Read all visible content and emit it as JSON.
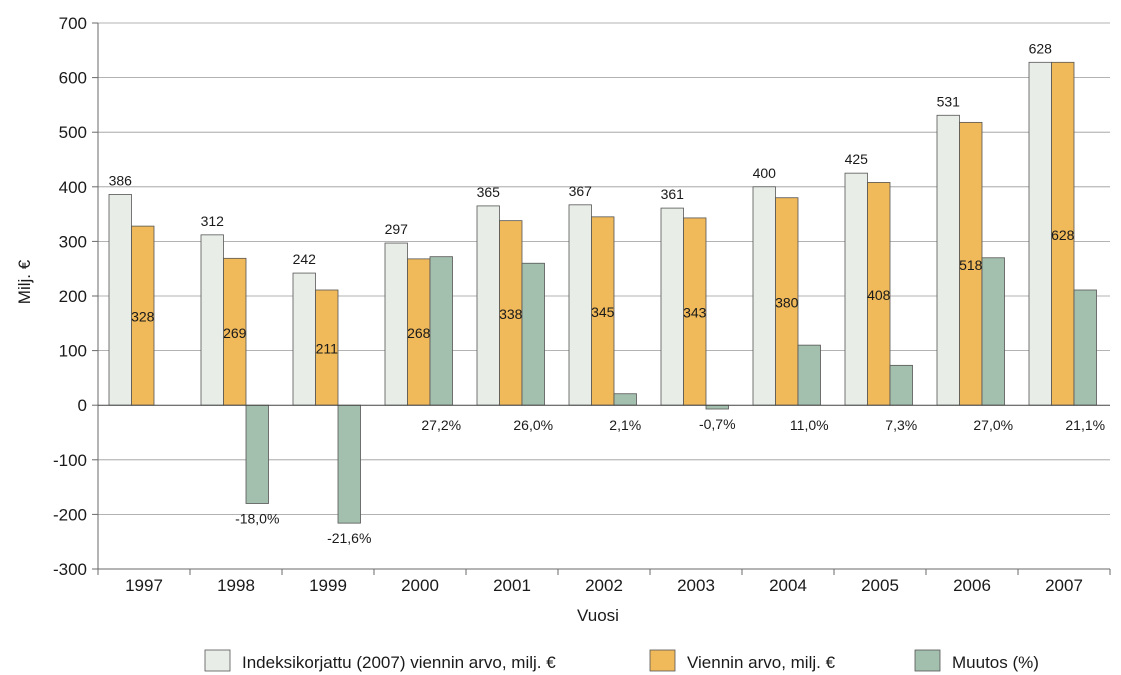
{
  "chart_data": {
    "type": "bar",
    "xlabel": "Vuosi",
    "ylabel": "Milj. €",
    "ylim": [
      -300,
      700
    ],
    "yticks": [
      -300,
      -200,
      -100,
      0,
      100,
      200,
      300,
      400,
      500,
      600,
      700
    ],
    "ytick_labels": [
      "-300",
      "-200",
      "-100",
      "0",
      "100",
      "200",
      "300",
      "400",
      "500",
      "600",
      "700"
    ],
    "grid": "horizontal",
    "legend_position": "bottom",
    "categories": [
      "1997",
      "1998",
      "1999",
      "2000",
      "2001",
      "2002",
      "2003",
      "2004",
      "2005",
      "2006",
      "2007"
    ],
    "series": [
      {
        "name": "Indeksikorjattu (2007) viennin arvo, milj. €",
        "color": "#e8ede8",
        "values": [
          386,
          312,
          242,
          297,
          365,
          367,
          361,
          400,
          425,
          531,
          628
        ],
        "labels": [
          "386",
          "312",
          "242",
          "297",
          "365",
          "367",
          "361",
          "400",
          "425",
          "531",
          "628"
        ]
      },
      {
        "name": "Viennin arvo, milj. €",
        "color": "#f0b95a",
        "values": [
          328,
          269,
          211,
          268,
          338,
          345,
          343,
          380,
          408,
          518,
          628
        ],
        "labels": [
          "328",
          "269",
          "211",
          "268",
          "338",
          "345",
          "343",
          "380",
          "408",
          "518",
          "628"
        ]
      },
      {
        "name": "Muutos (%)",
        "color": "#a3bfad",
        "values": [
          null,
          -180,
          -216,
          272,
          260,
          21,
          -7,
          110,
          73,
          270,
          211
        ],
        "labels": [
          "",
          "-18,0%",
          "-21,6%",
          "27,2%",
          "26,0%",
          "2,1%",
          "-0,7%",
          "11,0%",
          "7,3%",
          "27,0%",
          "21,1%"
        ]
      }
    ]
  }
}
